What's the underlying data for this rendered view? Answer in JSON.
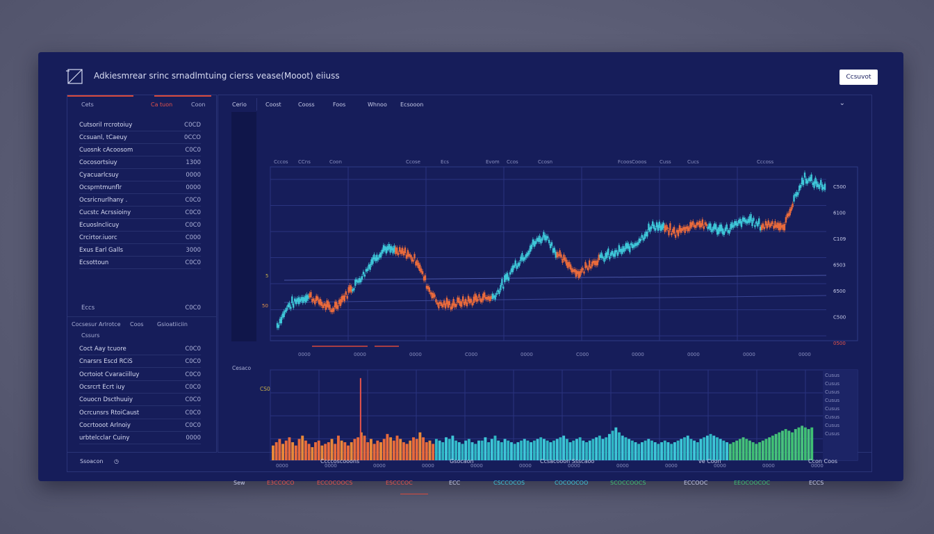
{
  "app": {
    "title": "Adkiesmrear srinc  srnadlmtuing  cierss vease(Mooot) eiiuss",
    "logo_icon": "chart-box-icon",
    "top_button_label": "Ccsuvot"
  },
  "watchlist": {
    "tabs": [
      "Cets",
      "Ca tuon",
      "Coon"
    ],
    "items": [
      {
        "name": "Cutsoril rrcrotoiuy",
        "value": "C0CD"
      },
      {
        "name": "Ccsuanl, tCaeuy",
        "value": "0CCO"
      },
      {
        "name": "Cuosnk cAcoosom",
        "value": "C0C0"
      },
      {
        "name": "Cocosortsiuy",
        "value": "1300"
      },
      {
        "name": "Cyacuarlcsuy",
        "value": "0000"
      },
      {
        "name": "Ocsprntmunflr",
        "value": "0000"
      },
      {
        "name": "Ocsricnurlhany .",
        "value": "C0C0"
      },
      {
        "name": "Cucstc Acrssioiny",
        "value": "C0C0"
      },
      {
        "name": "Ecuoslnclicuy",
        "value": "C0C0"
      },
      {
        "name": "Crcirtor.iuorc",
        "value": "C000"
      },
      {
        "name": "Exus Earl Galls",
        "value": "3000"
      },
      {
        "name": "Ecsottoun",
        "value": "C0C0"
      }
    ],
    "summary": {
      "label": "Eccs",
      "value": "C0C0"
    }
  },
  "portfolio": {
    "header": [
      "Cocsesur Arlrotce",
      "Coos",
      "Gsioatiiciin"
    ],
    "section_label": "Cssurs",
    "items": [
      {
        "name": "Coct Aay tcuore",
        "value": "C0C0"
      },
      {
        "name": "Cnarsrs Escd RCiS",
        "value": "C0C0"
      },
      {
        "name": "Ocrtoiot Cvaraciilluy",
        "value": "C0C0"
      },
      {
        "name": "Ocsrcrt Ecrt iuy",
        "value": "C0C0"
      },
      {
        "name": "Couocn Dscthuuiy",
        "value": "C0C0"
      },
      {
        "name": "Ocrcunsrs RtoiCaust",
        "value": "C0C0"
      },
      {
        "name": "Cocrtooot Arlnoiy",
        "value": "C0C0"
      },
      {
        "name": "urbtelcclar Cuiny",
        "value": "0000"
      }
    ]
  },
  "toolbar": {
    "items": [
      "Cerio",
      "Coost",
      "Cooss",
      "Foos",
      "Whnoo",
      "Ecsooon"
    ]
  },
  "side": {
    "marker_label": "Cesaco",
    "vol_label": "CS0"
  },
  "price_axis": {
    "labels": [
      "C500",
      "6100",
      "C109",
      "6503",
      "6500",
      "C500",
      "0500"
    ],
    "top_labels": [
      "Cccos",
      "CCns",
      "Coon",
      "Ccose",
      "Ecs",
      "Evom",
      "Ccos",
      "Ccosn",
      "Fcoos",
      "Cooos",
      "Cuss",
      "Cucs",
      "Cccoss"
    ],
    "left_marks": [
      "5",
      "50"
    ],
    "bottom_labels": [
      "0000",
      "0000",
      "0000",
      "C000",
      "0000",
      "C000",
      "0000",
      "0000",
      "0000",
      "0000"
    ]
  },
  "volume_axis": {
    "right_labels": [
      "Cusus",
      "Cusus",
      "Cusus",
      "Cusus",
      "Cusus",
      "Cusus",
      "Cusus",
      "Cusus"
    ],
    "x_labels": [
      "0000",
      "0000",
      "0000",
      "0000",
      "0000",
      "0000",
      "0000",
      "0000",
      "0000",
      "0000",
      "0000",
      "0000"
    ]
  },
  "bottom_labels": [
    {
      "text": "Sew",
      "color": "#c7cbe8"
    },
    {
      "text": "E3CCOCO",
      "color": "#e5534b"
    },
    {
      "text": "ECCOCOOCS",
      "color": "#e5534b"
    },
    {
      "text": "ESCCCOC",
      "color": "#e5534b"
    },
    {
      "text": "ECC",
      "color": "#c7cbe8"
    },
    {
      "text": "CSCCOCOS",
      "color": "#3ec6d8"
    },
    {
      "text": "COCOOCOO",
      "color": "#3ec6d8"
    },
    {
      "text": "SCOCCOOCS",
      "color": "#3fbf73"
    },
    {
      "text": "ECCOOC",
      "color": "#c7cbe8"
    },
    {
      "text": "EEOCOOCOC",
      "color": "#3fbf73"
    },
    {
      "text": "ECCS",
      "color": "#c7cbe8"
    }
  ],
  "status_bar": {
    "items": [
      "Ssoacon",
      "Ccccoscooons",
      "Gsocaon",
      "Ccsacooon Ssscaoo",
      "ve Coon",
      "Ccon Coos"
    ],
    "clock_icon": "clock-icon"
  },
  "colors": {
    "background": "#161d5a",
    "up": "#3ec6d8",
    "down": "#e86a3c",
    "accent_red": "#d94a3c",
    "green": "#3fbf73"
  },
  "chart_data": [
    {
      "type": "line",
      "series": [
        {
          "values": [
            6.4,
            6.55,
            6.6,
            6.63,
            6.58,
            6.52,
            6.6,
            6.7,
            6.8,
            6.92,
            7.0,
            6.97,
            6.96,
            6.9,
            6.7,
            6.57,
            6.56,
            6.58,
            6.59,
            6.62,
            6.62,
            6.72,
            6.86,
            6.95,
            7.05,
            7.1,
            6.95,
            6.88,
            6.8,
            6.88,
            6.92,
            6.95,
            6.98,
            7.02,
            7.1,
            7.18,
            7.15,
            7.12,
            7.16,
            7.2,
            7.17,
            7.14,
            7.15,
            7.2,
            7.22,
            7.17,
            7.2,
            7.15,
            7.38,
            7.55,
            7.5,
            7.48
          ]
        }
      ],
      "down_segments": [
        [
          3,
          6
        ],
        [
          11,
          19
        ],
        [
          26,
          29
        ],
        [
          36,
          39
        ],
        [
          45,
          47
        ],
        [
          51,
          51
        ]
      ],
      "ylim": [
        6.3,
        7.65
      ],
      "grid": true
    },
    {
      "type": "bar",
      "values": [
        18,
        22,
        26,
        20,
        24,
        28,
        22,
        18,
        26,
        30,
        24,
        20,
        16,
        22,
        24,
        18,
        20,
        22,
        26,
        20,
        30,
        24,
        22,
        18,
        22,
        26,
        28,
        34,
        30,
        22,
        26,
        20,
        24,
        22,
        26,
        32,
        28,
        24,
        30,
        26,
        22,
        20,
        24,
        28,
        26,
        34,
        28,
        22,
        24,
        20,
        26,
        24,
        22,
        28,
        26,
        30,
        24,
        22,
        20,
        24,
        26,
        22,
        20,
        24,
        24,
        28,
        22,
        26,
        30,
        24,
        22,
        26,
        24,
        22,
        20,
        22,
        24,
        26,
        24,
        22,
        24,
        26,
        28,
        26,
        24,
        22,
        24,
        26,
        28,
        30,
        26,
        22,
        24,
        26,
        28,
        24,
        22,
        24,
        26,
        28,
        30,
        26,
        28,
        32,
        36,
        40,
        34,
        30,
        28,
        26,
        24,
        22,
        20,
        22,
        24,
        26,
        24,
        22,
        20,
        22,
        24,
        22,
        20,
        22,
        24,
        26,
        28,
        30,
        26,
        24,
        22,
        26,
        28,
        30,
        32,
        30,
        28,
        26,
        24,
        22,
        20,
        22,
        24,
        26,
        28,
        26,
        24,
        22,
        20,
        22,
        24,
        26,
        28,
        30,
        32,
        34,
        36,
        38,
        36,
        34,
        38,
        40,
        42,
        40,
        38,
        40
      ],
      "spike": {
        "index": 27,
        "value": 100
      },
      "ylim": [
        0,
        110
      ],
      "grid": true
    }
  ]
}
